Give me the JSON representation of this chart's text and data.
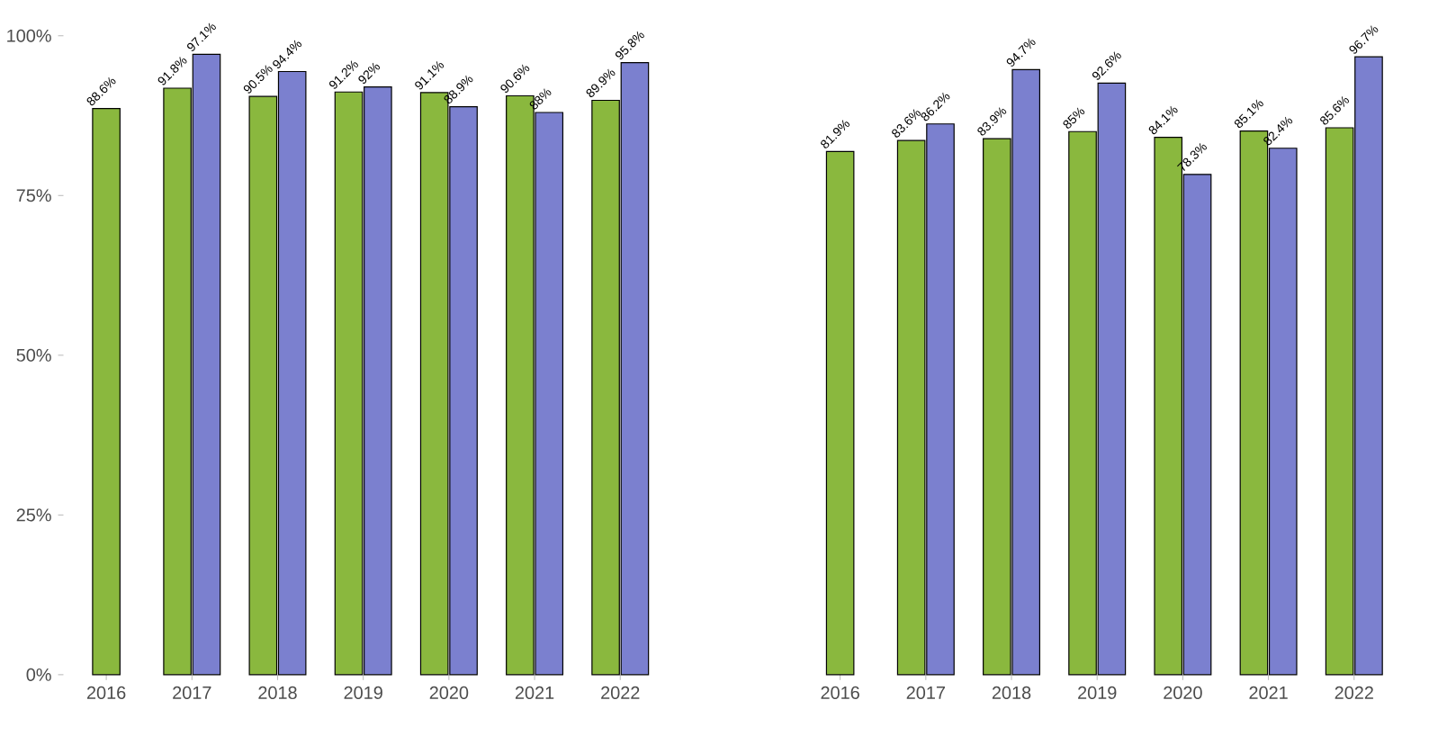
{
  "chart_data": [
    {
      "type": "bar",
      "categories": [
        "2016",
        "2017",
        "2018",
        "2019",
        "2020",
        "2021",
        "2022"
      ],
      "ylim": [
        0,
        100
      ],
      "yticks": [
        {
          "value": 0,
          "label": "0%"
        },
        {
          "value": 25,
          "label": "25%"
        },
        {
          "value": 50,
          "label": "50%"
        },
        {
          "value": 75,
          "label": "75%"
        },
        {
          "value": 100,
          "label": "100%"
        }
      ],
      "series": [
        {
          "color": "#8ab83e",
          "values": [
            88.6,
            91.8,
            90.5,
            91.2,
            91.1,
            90.6,
            89.9
          ],
          "value_labels": [
            "88.6%",
            "91.8%",
            "90.5%",
            "91.2%",
            "91.1%",
            "90.6%",
            "89.9%"
          ]
        },
        {
          "color": "#7b80cf",
          "values": [
            null,
            97.1,
            94.4,
            92,
            88.9,
            88,
            95.8
          ],
          "value_labels": [
            null,
            "97.1%",
            "94.4%",
            "92%",
            "88.9%",
            "88%",
            "95.8%"
          ]
        }
      ]
    },
    {
      "type": "bar",
      "categories": [
        "2016",
        "2017",
        "2018",
        "2019",
        "2020",
        "2021",
        "2022"
      ],
      "ylim": [
        0,
        100
      ],
      "tick_labels": "x",
      "series": [
        {
          "color": "#8ab83e",
          "values": [
            81.9,
            83.6,
            83.9,
            85,
            84.1,
            85.1,
            85.6
          ],
          "value_labels": [
            "81.9%",
            "83.6%",
            "83.9%",
            "85%",
            "84.1%",
            "85.1%",
            "85.6%"
          ]
        },
        {
          "color": "#7b80cf",
          "values": [
            null,
            86.2,
            94.7,
            92.6,
            78.3,
            82.4,
            96.7
          ],
          "value_labels": [
            null,
            "86.2%",
            "94.7%",
            "92.6%",
            "78.3%",
            "82.4%",
            "96.7%"
          ]
        }
      ]
    }
  ]
}
